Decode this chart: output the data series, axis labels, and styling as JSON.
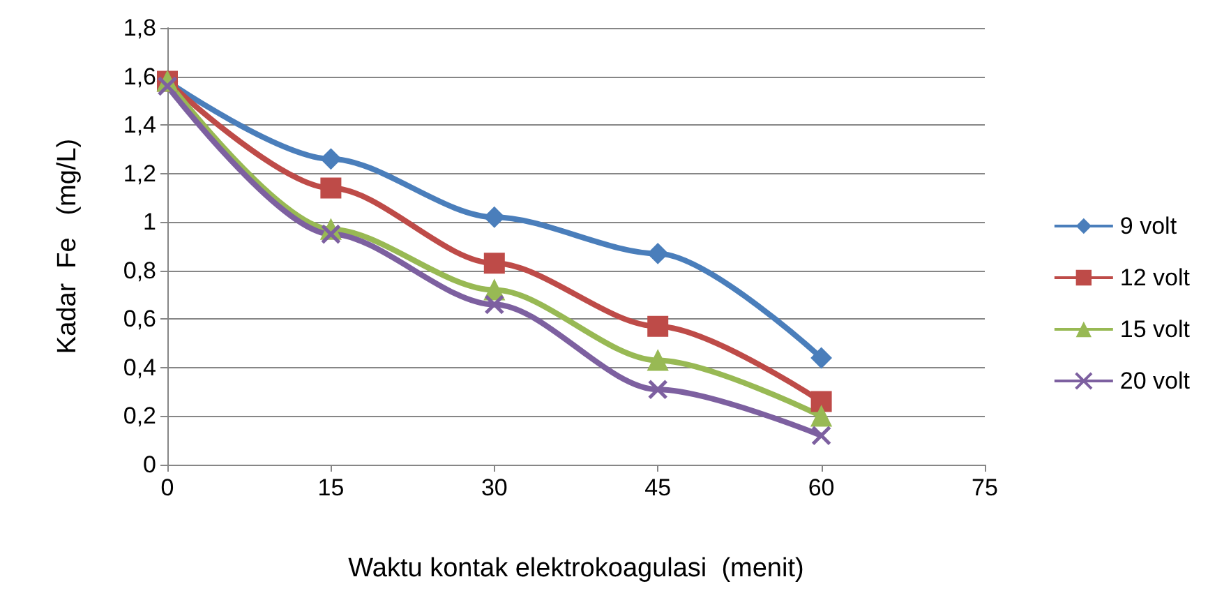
{
  "chart_data": {
    "type": "line",
    "xlabel": "Waktu kontak elektrokoagulasi  (menit)",
    "ylabel": "Kadar  Fe   (mg/L)",
    "x": [
      0,
      15,
      30,
      45,
      60
    ],
    "series": [
      {
        "name": "9 volt",
        "color": "#4a7ebb",
        "marker": "diamond",
        "values": [
          1.58,
          1.26,
          1.02,
          0.87,
          0.44
        ]
      },
      {
        "name": "12 volt",
        "color": "#be4b48",
        "marker": "square",
        "values": [
          1.58,
          1.14,
          0.83,
          0.57,
          0.26
        ]
      },
      {
        "name": "15 volt",
        "color": "#98b954",
        "marker": "triangle",
        "values": [
          1.58,
          0.97,
          0.72,
          0.43,
          0.2
        ]
      },
      {
        "name": "20 volt",
        "color": "#7d60a0",
        "marker": "cross",
        "values": [
          1.56,
          0.95,
          0.66,
          0.31,
          0.12
        ]
      }
    ],
    "xlim": [
      0,
      75
    ],
    "xticks": [
      0,
      15,
      30,
      45,
      60,
      75
    ],
    "ylim": [
      0,
      1.8
    ],
    "yticks": [
      0,
      {
        "value": 0.2,
        "label": "0,2"
      },
      {
        "value": 0.4,
        "label": "0,4"
      },
      {
        "value": 0.6,
        "label": "0,6"
      },
      {
        "value": 0.8,
        "label": "0,8"
      },
      1,
      {
        "value": 1.2,
        "label": "1,2"
      },
      {
        "value": 1.4,
        "label": "1,4"
      },
      {
        "value": 1.6,
        "label": "1,6"
      },
      {
        "value": 1.8,
        "label": "1,8"
      }
    ],
    "grid": "y",
    "legend": "right",
    "line_style": "solid"
  }
}
